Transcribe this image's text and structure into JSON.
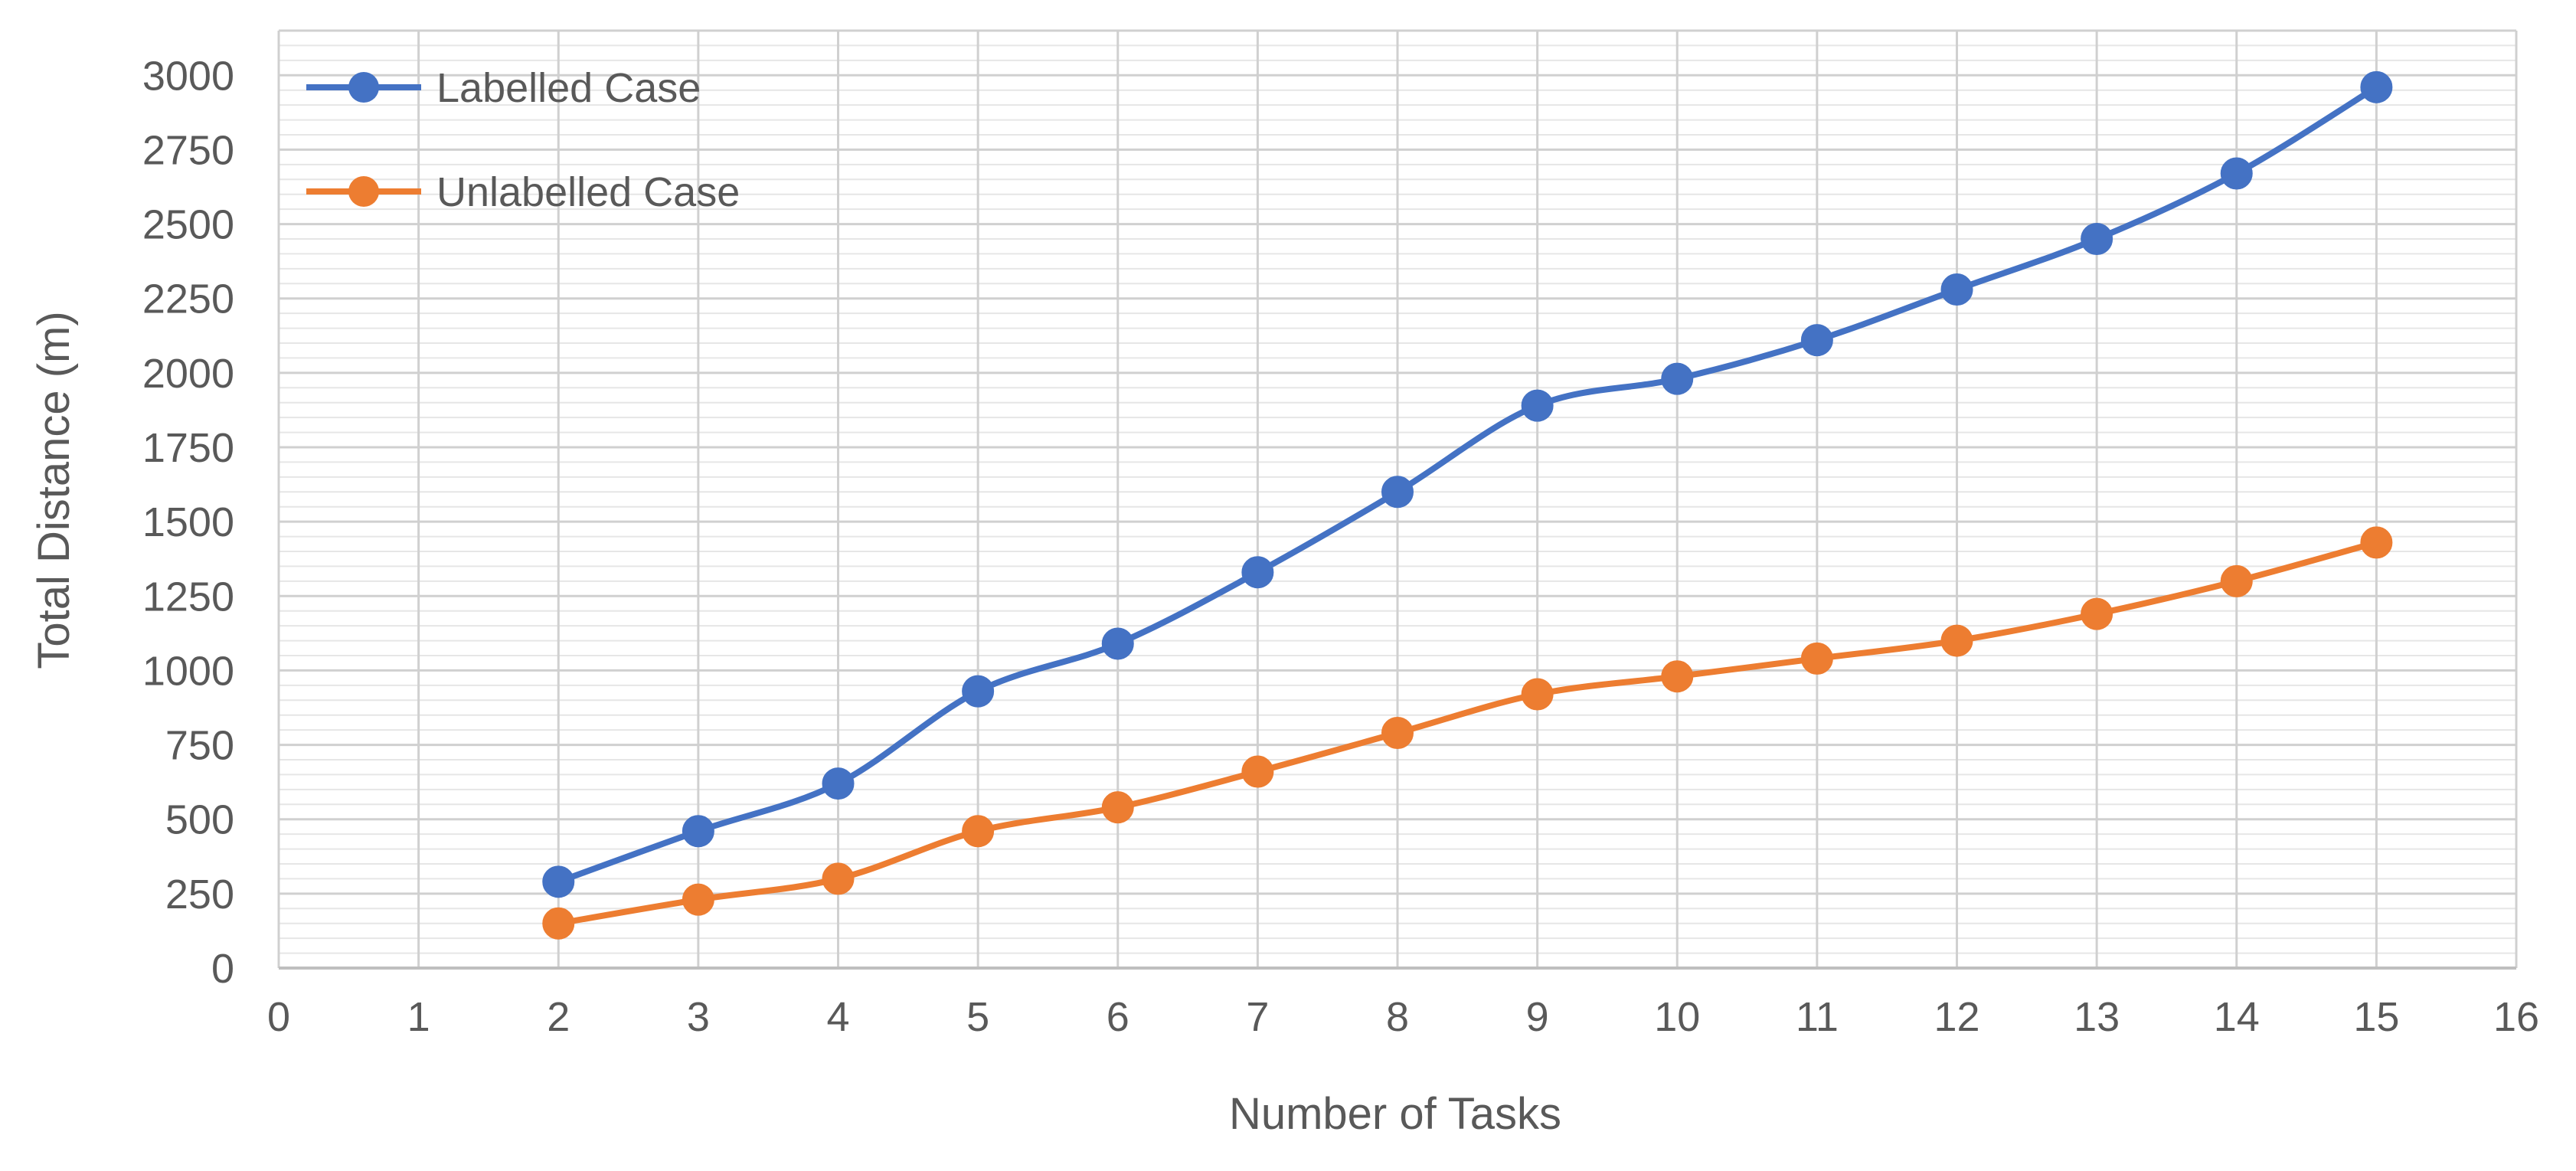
{
  "chart_data": {
    "type": "line",
    "title": "",
    "xlabel": "Number of Tasks",
    "ylabel": "Total Distance  (m)",
    "xlim": [
      0,
      16
    ],
    "ylim": [
      0,
      3000
    ],
    "x_ticks": [
      0,
      1,
      2,
      3,
      4,
      5,
      6,
      7,
      8,
      9,
      10,
      11,
      12,
      13,
      14,
      15,
      16
    ],
    "y_ticks": [
      0,
      250,
      500,
      750,
      1000,
      1250,
      1500,
      1750,
      2000,
      2250,
      2500,
      2750,
      3000
    ],
    "y_minor_step": 50,
    "grid": true,
    "legend_position": "top-left",
    "series": [
      {
        "name": "Labelled Case",
        "color": "#4472C4",
        "x": [
          2,
          3,
          4,
          5,
          6,
          7,
          8,
          9,
          10,
          11,
          12,
          13,
          14,
          15
        ],
        "values": [
          290,
          460,
          620,
          930,
          1090,
          1330,
          1600,
          1890,
          1980,
          2110,
          2280,
          2450,
          2670,
          2960
        ]
      },
      {
        "name": "Unlabelled Case",
        "color": "#ED7D31",
        "x": [
          2,
          3,
          4,
          5,
          6,
          7,
          8,
          9,
          10,
          11,
          12,
          13,
          14,
          15
        ],
        "values": [
          150,
          230,
          300,
          460,
          540,
          660,
          790,
          920,
          980,
          1040,
          1100,
          1190,
          1300,
          1430
        ]
      }
    ]
  }
}
